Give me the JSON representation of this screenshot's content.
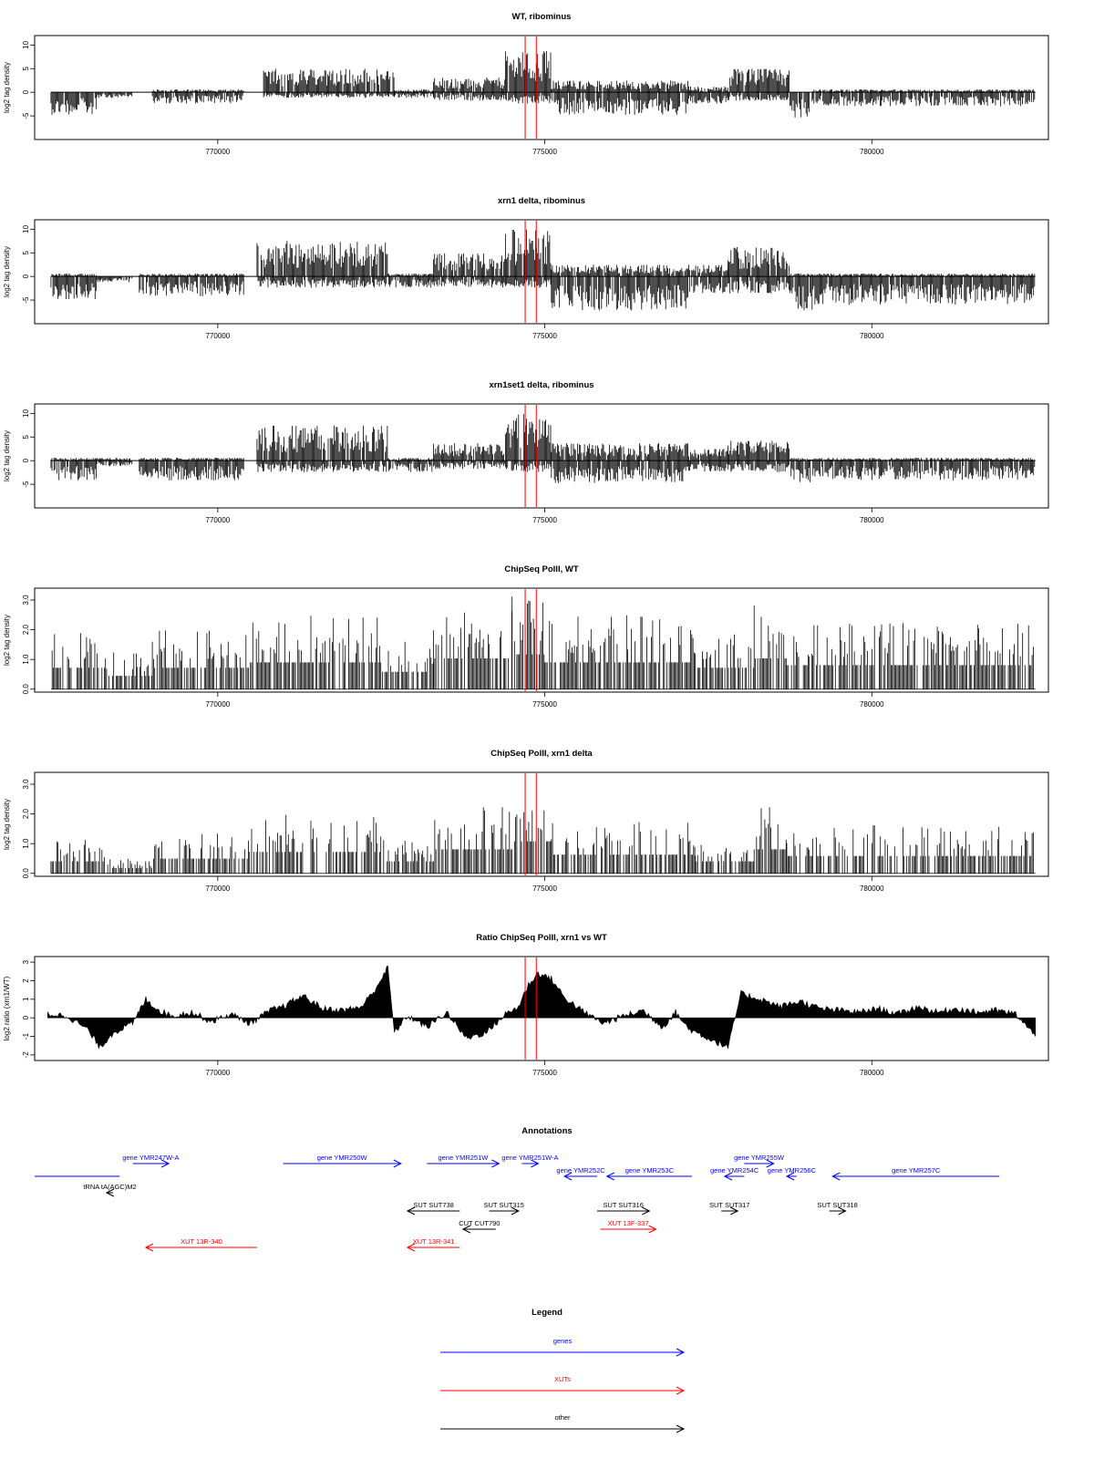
{
  "chart_data": [
    {
      "type": "bar",
      "title": "WT, ribominus",
      "ylabel": "log2 tag density",
      "ylim": [
        -10,
        12
      ],
      "yticks": [
        -5,
        0,
        5,
        10
      ],
      "xlim": [
        767200,
        782700
      ],
      "xticks": [
        770000,
        775000,
        780000
      ],
      "markers": [
        774700,
        774870
      ],
      "track_profile": {
        "signal": "log2 tag density, + strand positive / - strand negative",
        "segments": [
          {
            "start": 767450,
            "end": 768150,
            "pos": 0,
            "neg": 4
          },
          {
            "start": 768150,
            "end": 768700,
            "pos": 0,
            "neg": 1
          },
          {
            "start": 769000,
            "end": 770400,
            "pos": 0.5,
            "neg": 2
          },
          {
            "start": 770700,
            "end": 772700,
            "pos": 4,
            "neg": 1
          },
          {
            "start": 772700,
            "end": 773300,
            "pos": 0.5,
            "neg": 1
          },
          {
            "start": 773300,
            "end": 774400,
            "pos": 2.5,
            "neg": 1.5
          },
          {
            "start": 774400,
            "end": 775100,
            "pos": 7,
            "neg": 2
          },
          {
            "start": 775100,
            "end": 777200,
            "pos": 2,
            "neg": 4
          },
          {
            "start": 777200,
            "end": 777800,
            "pos": 1,
            "neg": 2
          },
          {
            "start": 777800,
            "end": 778750,
            "pos": 4,
            "neg": 1.5
          },
          {
            "start": 778750,
            "end": 779100,
            "pos": 0,
            "neg": 4.5
          },
          {
            "start": 779100,
            "end": 782500,
            "pos": 0.5,
            "neg": 2.5
          }
        ]
      }
    },
    {
      "type": "bar",
      "title": "xrn1 delta, ribominus",
      "ylabel": "log2 tag density",
      "ylim": [
        -10,
        12
      ],
      "yticks": [
        -5,
        0,
        5,
        10
      ],
      "xlim": [
        767200,
        782700
      ],
      "xticks": [
        770000,
        775000,
        780000
      ],
      "markers": [
        774700,
        774870
      ],
      "track_profile": {
        "signal": "log2 tag density, + strand positive / - strand negative",
        "segments": [
          {
            "start": 767450,
            "end": 768150,
            "pos": 0.5,
            "neg": 4
          },
          {
            "start": 768150,
            "end": 768700,
            "pos": 0,
            "neg": 1
          },
          {
            "start": 768800,
            "end": 770400,
            "pos": 0.5,
            "neg": 3.5
          },
          {
            "start": 770600,
            "end": 772600,
            "pos": 6,
            "neg": 2
          },
          {
            "start": 772600,
            "end": 773300,
            "pos": 0.5,
            "neg": 2
          },
          {
            "start": 773300,
            "end": 774400,
            "pos": 4,
            "neg": 2
          },
          {
            "start": 774400,
            "end": 775100,
            "pos": 8,
            "neg": 2
          },
          {
            "start": 775100,
            "end": 777200,
            "pos": 2,
            "neg": 6
          },
          {
            "start": 777200,
            "end": 777800,
            "pos": 2,
            "neg": 3
          },
          {
            "start": 777800,
            "end": 778750,
            "pos": 5,
            "neg": 3
          },
          {
            "start": 778750,
            "end": 779100,
            "pos": 0.5,
            "neg": 6
          },
          {
            "start": 779100,
            "end": 782500,
            "pos": 0.5,
            "neg": 5
          }
        ]
      }
    },
    {
      "type": "bar",
      "title": "xrn1set1 delta, ribominus",
      "ylabel": "log2 tag density",
      "ylim": [
        -10,
        12
      ],
      "yticks": [
        -5,
        0,
        5,
        10
      ],
      "xlim": [
        767200,
        782700
      ],
      "xticks": [
        770000,
        775000,
        780000
      ],
      "markers": [
        774700,
        774870
      ],
      "track_profile": {
        "signal": "log2 tag density, + strand positive / - strand negative",
        "segments": [
          {
            "start": 767450,
            "end": 768150,
            "pos": 0.5,
            "neg": 3.5
          },
          {
            "start": 768150,
            "end": 768700,
            "pos": 0.5,
            "neg": 1
          },
          {
            "start": 768800,
            "end": 770400,
            "pos": 0.5,
            "neg": 3.5
          },
          {
            "start": 770600,
            "end": 772600,
            "pos": 6,
            "neg": 2
          },
          {
            "start": 772600,
            "end": 773300,
            "pos": 0.5,
            "neg": 2
          },
          {
            "start": 773300,
            "end": 774400,
            "pos": 3,
            "neg": 1.5
          },
          {
            "start": 774400,
            "end": 775100,
            "pos": 8,
            "neg": 2
          },
          {
            "start": 775100,
            "end": 777200,
            "pos": 3,
            "neg": 4
          },
          {
            "start": 777200,
            "end": 777800,
            "pos": 2,
            "neg": 2
          },
          {
            "start": 777800,
            "end": 778750,
            "pos": 3.5,
            "neg": 2
          },
          {
            "start": 778750,
            "end": 779100,
            "pos": 0.5,
            "neg": 4
          },
          {
            "start": 779100,
            "end": 782500,
            "pos": 0.5,
            "neg": 3.5
          }
        ]
      }
    },
    {
      "type": "bar",
      "title": "ChipSeq PolII, WT",
      "ylabel": "log2 tag density",
      "ylim": [
        -0.1,
        3.4
      ],
      "yticks": [
        0,
        1,
        2,
        3
      ],
      "ytick_labels": [
        "0.0",
        "1.0",
        "2.0",
        "3.0"
      ],
      "xlim": [
        767200,
        782700
      ],
      "xticks": [
        770000,
        775000,
        780000
      ],
      "markers": [
        774700,
        774870
      ],
      "track_profile": {
        "signal": "log2 tag density",
        "segments": [
          {
            "start": 767450,
            "end": 768300,
            "level": 1.6
          },
          {
            "start": 768300,
            "end": 769000,
            "level": 1.0
          },
          {
            "start": 769000,
            "end": 770500,
            "level": 1.6
          },
          {
            "start": 770500,
            "end": 772500,
            "level": 2.0
          },
          {
            "start": 772500,
            "end": 773300,
            "level": 1.3
          },
          {
            "start": 773300,
            "end": 774500,
            "level": 2.3
          },
          {
            "start": 774500,
            "end": 775000,
            "level": 2.6
          },
          {
            "start": 775000,
            "end": 777300,
            "level": 2.0
          },
          {
            "start": 777300,
            "end": 778200,
            "level": 1.6
          },
          {
            "start": 778200,
            "end": 778700,
            "level": 2.3
          },
          {
            "start": 778700,
            "end": 782500,
            "level": 1.8
          }
        ]
      }
    },
    {
      "type": "bar",
      "title": "ChipSeq PolII, xrn1 delta",
      "ylabel": "log2 tag density",
      "ylim": [
        -0.1,
        3.4
      ],
      "yticks": [
        0,
        1,
        2,
        3
      ],
      "ytick_labels": [
        "0.0",
        "1.0",
        "2.0",
        "3.0"
      ],
      "xlim": [
        767200,
        782700
      ],
      "xticks": [
        770000,
        775000,
        780000
      ],
      "markers": [
        774700,
        774870
      ],
      "track_profile": {
        "signal": "log2 tag density",
        "segments": [
          {
            "start": 767450,
            "end": 768300,
            "level": 0.9
          },
          {
            "start": 768300,
            "end": 769000,
            "level": 0.4
          },
          {
            "start": 769000,
            "end": 770500,
            "level": 1.1
          },
          {
            "start": 770500,
            "end": 772500,
            "level": 1.6
          },
          {
            "start": 772500,
            "end": 773300,
            "level": 0.9
          },
          {
            "start": 773300,
            "end": 774500,
            "level": 1.8
          },
          {
            "start": 774500,
            "end": 775100,
            "level": 2.4
          },
          {
            "start": 775100,
            "end": 777300,
            "level": 1.4
          },
          {
            "start": 777300,
            "end": 778200,
            "level": 0.9
          },
          {
            "start": 778200,
            "end": 778700,
            "level": 1.8
          },
          {
            "start": 778700,
            "end": 782500,
            "level": 1.3
          }
        ]
      }
    },
    {
      "type": "area",
      "title": "Ratio ChipSeq PolII, xrn1 vs WT",
      "ylabel": "log2 ratio (xrn1/WT)",
      "ylim": [
        -2.3,
        3.3
      ],
      "yticks": [
        -2,
        -1,
        0,
        1,
        2,
        3
      ],
      "xlim": [
        767200,
        782700
      ],
      "xticks": [
        770000,
        775000,
        780000
      ],
      "markers": [
        774700,
        774870
      ],
      "x": [
        767400,
        767700,
        768000,
        768200,
        768400,
        768700,
        768900,
        769100,
        769300,
        769600,
        769900,
        770200,
        770500,
        770800,
        771000,
        771300,
        771600,
        771900,
        772200,
        772400,
        772600,
        772700,
        772900,
        773200,
        773500,
        773800,
        774100,
        774400,
        774600,
        774750,
        774900,
        775100,
        775300,
        775600,
        775900,
        776200,
        776500,
        776800,
        777000,
        777200,
        777500,
        777800,
        778000,
        778300,
        778600,
        778900,
        779200,
        779500,
        779800,
        780100,
        780400,
        780700,
        781000,
        781300,
        781600,
        781900,
        782200,
        782500
      ],
      "y": [
        0.2,
        0.1,
        -0.6,
        -1.6,
        -0.8,
        -0.3,
        1.0,
        0.4,
        0.1,
        0.3,
        -0.2,
        0.2,
        -0.3,
        0.4,
        0.6,
        1.2,
        0.5,
        0.4,
        0.6,
        1.5,
        2.7,
        -0.8,
        0.1,
        -0.5,
        0.3,
        -1.1,
        -0.8,
        0.2,
        0.6,
        1.8,
        2.4,
        2.1,
        1.1,
        0.3,
        -0.3,
        0.1,
        0.4,
        -0.5,
        0.3,
        -0.6,
        -1.1,
        -1.6,
        1.3,
        1.0,
        0.6,
        0.9,
        0.5,
        0.4,
        0.3,
        0.5,
        0.2,
        0.6,
        0.3,
        0.5,
        0.3,
        0.4,
        0.2,
        -1.0
      ]
    }
  ],
  "annotations": {
    "title": "Annotations",
    "features": [
      {
        "label": "gene YMR247W-A",
        "kind": "gene",
        "start": 768700,
        "end": 769250,
        "strand": "+",
        "row": 0
      },
      {
        "label": "gene YMR250W",
        "kind": "gene",
        "start": 771000,
        "end": 772800,
        "strand": "+",
        "row": 0
      },
      {
        "label": "gene YMR251W",
        "kind": "gene",
        "start": 773200,
        "end": 774300,
        "strand": "+",
        "row": 0
      },
      {
        "label": "gene YMR251W-A",
        "kind": "gene",
        "start": 774650,
        "end": 774900,
        "strand": "+",
        "row": 0
      },
      {
        "label": "gene YMR252C",
        "kind": "gene",
        "start": 775300,
        "end": 775800,
        "strand": "-",
        "row": 1
      },
      {
        "label": "gene YMR253C",
        "kind": "gene",
        "start": 775950,
        "end": 777250,
        "strand": "-",
        "row": 1
      },
      {
        "label": "gene YMR255W",
        "kind": "gene",
        "start": 778050,
        "end": 778500,
        "strand": "+",
        "row": 0
      },
      {
        "label": "gene YMR254C",
        "kind": "gene",
        "start": 777750,
        "end": 778050,
        "strand": "-",
        "row": 1
      },
      {
        "label": "gene YMR256C",
        "kind": "gene",
        "start": 778700,
        "end": 778850,
        "strand": "-",
        "row": 1
      },
      {
        "label": "gene YMR257C",
        "kind": "gene",
        "start": 779400,
        "end": 781950,
        "strand": "-",
        "row": 1
      },
      {
        "label": "",
        "kind": "gene",
        "start": 767200,
        "end": 768500,
        "strand": "none",
        "row": 1
      },
      {
        "label": "tRNA tA(AGC)M2",
        "kind": "other",
        "start": 768300,
        "end": 768400,
        "strand": "-",
        "row": 2
      },
      {
        "label": "SUT SUT738",
        "kind": "other",
        "start": 772900,
        "end": 773700,
        "strand": "-",
        "row": 3
      },
      {
        "label": "SUT SUT315",
        "kind": "other",
        "start": 774150,
        "end": 774600,
        "strand": "+",
        "row": 3
      },
      {
        "label": "SUT SUT316",
        "kind": "other",
        "start": 775800,
        "end": 776600,
        "strand": "+",
        "row": 3
      },
      {
        "label": "SUT SUT317",
        "kind": "other",
        "start": 777700,
        "end": 777950,
        "strand": "+",
        "row": 3
      },
      {
        "label": "SUT SUT318",
        "kind": "other",
        "start": 779350,
        "end": 779600,
        "strand": "+",
        "row": 3
      },
      {
        "label": "CUT CUT790",
        "kind": "other",
        "start": 773750,
        "end": 774250,
        "strand": "-",
        "row": 4
      },
      {
        "label": "XUT 13R-340",
        "kind": "xut",
        "start": 768900,
        "end": 770600,
        "strand": "-",
        "row": 5
      },
      {
        "label": "XUT 13R-341",
        "kind": "xut",
        "start": 772900,
        "end": 773700,
        "strand": "-",
        "row": 5
      },
      {
        "label": "XUT 13F-337",
        "kind": "xut",
        "start": 775850,
        "end": 776700,
        "strand": "+",
        "row": 4
      }
    ]
  },
  "legend": {
    "title": "Legend",
    "items": [
      {
        "label": "genes",
        "color": "#0000ff"
      },
      {
        "label": "XUTs",
        "color": "#ff0000"
      },
      {
        "label": "other",
        "color": "#000000"
      }
    ]
  },
  "colors": {
    "marker": "#ff0000",
    "gene": "#0000ff",
    "xut": "#ff0000",
    "other": "#000000",
    "signal": "#000000"
  }
}
